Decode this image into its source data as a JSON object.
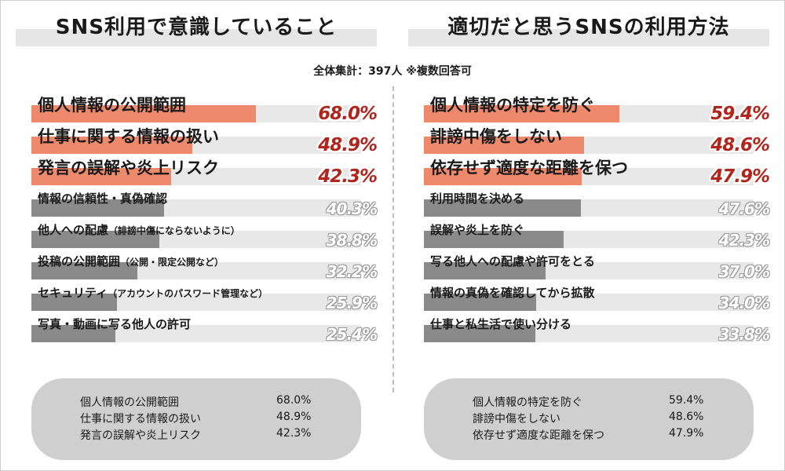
{
  "subtitle": "全体集計：397人 ※複数回答可",
  "colors": {
    "top_bar": "#ee8a6b",
    "rest_bar": "#8a8a8a",
    "bar_track": "#e8e8e8",
    "top_value": "#b0261c",
    "summary_bg": "#cfcfcf"
  },
  "chart_data": [
    {
      "type": "bar",
      "orientation": "horizontal",
      "title": "SNS利用で意識していること",
      "xlim": [
        0,
        100
      ],
      "items": [
        {
          "label": "個人情報の公開範囲",
          "note": "",
          "value": 68.0,
          "value_label": "68.0%",
          "highlight": true
        },
        {
          "label": "仕事に関する情報の扱い",
          "note": "",
          "value": 48.9,
          "value_label": "48.9%",
          "highlight": true
        },
        {
          "label": "発言の誤解や炎上リスク",
          "note": "",
          "value": 42.3,
          "value_label": "42.3%",
          "highlight": true
        },
        {
          "label": "情報の信頼性・真偽確認",
          "note": "",
          "value": 40.3,
          "value_label": "40.3%",
          "highlight": false
        },
        {
          "label": "他人への配慮",
          "note": "（誹謗中傷にならないように）",
          "value": 38.8,
          "value_label": "38.8%",
          "highlight": false
        },
        {
          "label": "投稿の公開範囲",
          "note": "（公開・限定公開など）",
          "value": 32.2,
          "value_label": "32.2%",
          "highlight": false
        },
        {
          "label": "セキュリティ",
          "note": "（アカウントのパスワード管理など）",
          "value": 25.9,
          "value_label": "25.9%",
          "highlight": false
        },
        {
          "label": "写真・動画に写る他人の許可",
          "note": "",
          "value": 25.4,
          "value_label": "25.4%",
          "highlight": false
        }
      ],
      "summary": [
        {
          "label": "個人情報の公開範囲",
          "value": "68.0%"
        },
        {
          "label": "仕事に関する情報の扱い",
          "value": "48.9%"
        },
        {
          "label": "発言の誤解や炎上リスク",
          "value": "42.3%"
        }
      ]
    },
    {
      "type": "bar",
      "orientation": "horizontal",
      "title": "適切だと思うSNSの利用方法",
      "xlim": [
        0,
        100
      ],
      "items": [
        {
          "label": "個人情報の特定を防ぐ",
          "note": "",
          "value": 59.4,
          "value_label": "59.4%",
          "highlight": true
        },
        {
          "label": "誹謗中傷をしない",
          "note": "",
          "value": 48.6,
          "value_label": "48.6%",
          "highlight": true
        },
        {
          "label": "依存せず適度な距離を保つ",
          "note": "",
          "value": 47.9,
          "value_label": "47.9%",
          "highlight": true
        },
        {
          "label": "利用時間を決める",
          "note": "",
          "value": 47.6,
          "value_label": "47.6%",
          "highlight": false
        },
        {
          "label": "誤解や炎上を防ぐ",
          "note": "",
          "value": 42.3,
          "value_label": "42.3%",
          "highlight": false
        },
        {
          "label": "写る他人への配慮や許可をとる",
          "note": "",
          "value": 37.0,
          "value_label": "37.0%",
          "highlight": false
        },
        {
          "label": "情報の真偽を確認してから拡散",
          "note": "",
          "value": 34.0,
          "value_label": "34.0%",
          "highlight": false
        },
        {
          "label": "仕事と私生活で使い分ける",
          "note": "",
          "value": 33.8,
          "value_label": "33.8%",
          "highlight": false
        }
      ],
      "summary": [
        {
          "label": "個人情報の特定を防ぐ",
          "value": "59.4%"
        },
        {
          "label": "誹謗中傷をしない",
          "value": "48.6%"
        },
        {
          "label": "依存せず適度な距離を保つ",
          "value": "47.9%"
        }
      ]
    }
  ]
}
